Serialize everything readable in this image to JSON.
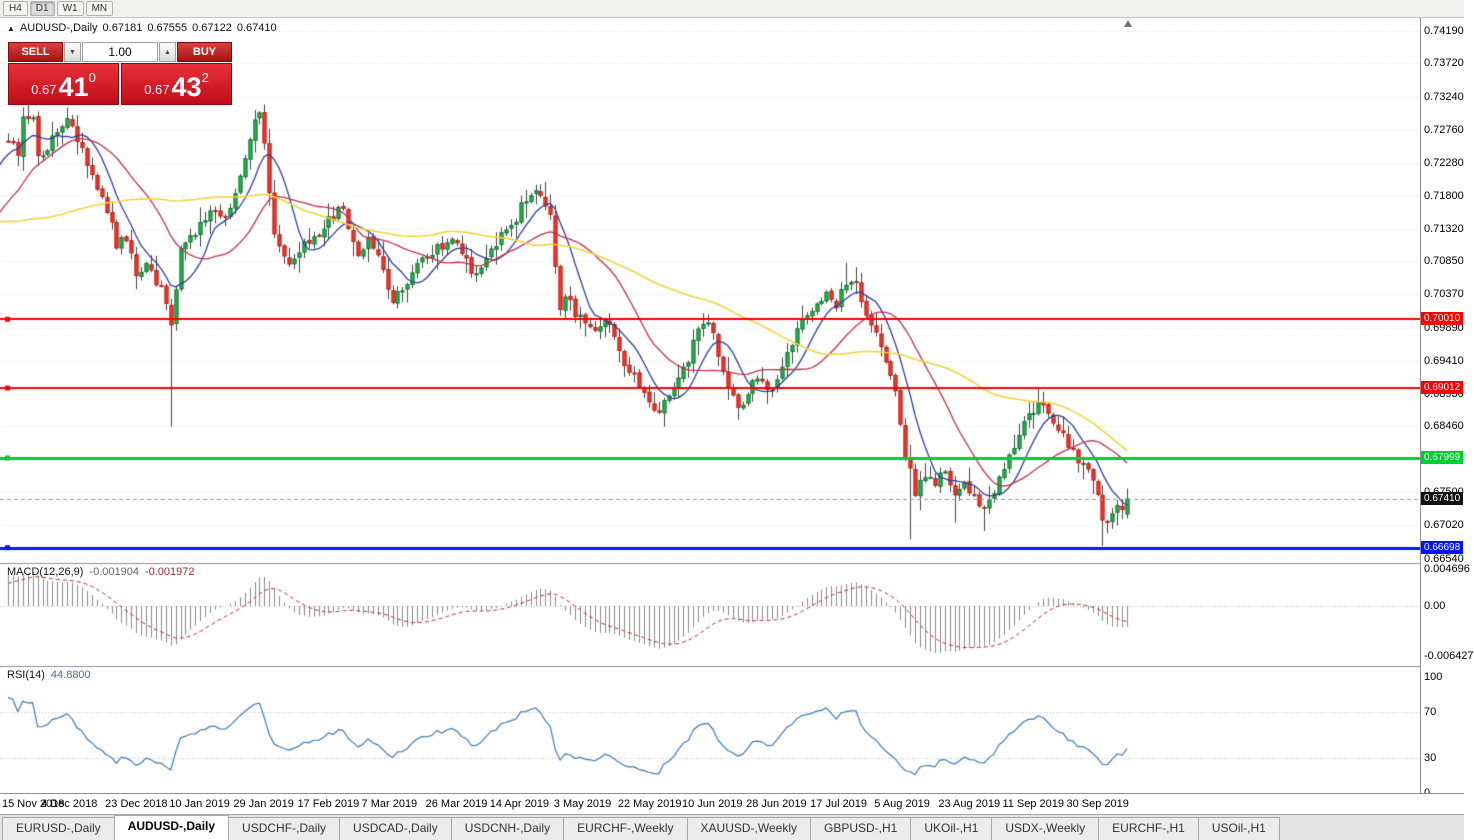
{
  "toolbar": {
    "timeframes": [
      "H4",
      "D1",
      "W1",
      "MN"
    ],
    "active": "D1"
  },
  "info_line": {
    "marker": "▲",
    "symbol": "AUDUSD-,Daily",
    "open": "0.67181",
    "high": "0.67555",
    "low": "0.67122",
    "close": "0.67410"
  },
  "trade_panel": {
    "sell_label": "SELL",
    "buy_label": "BUY",
    "volume": "1.00",
    "decrease_icon": "▼",
    "increase_icon": "▲",
    "sell_price": {
      "prefix": "0.67",
      "big": "41",
      "sup": "0"
    },
    "buy_price": {
      "prefix": "0.67",
      "big": "43",
      "sup": "2"
    },
    "panel_red": "#cf1118"
  },
  "chart_data": {
    "type": "candlestick",
    "symbol": "AUDUSD-",
    "period": "Daily",
    "candles_visible": 228,
    "preroll": 60,
    "price_anchors": [
      [
        -60,
        0.7285
      ],
      [
        -45,
        0.7185
      ],
      [
        -30,
        0.7045
      ],
      [
        -15,
        0.7095
      ],
      [
        -5,
        0.7232
      ],
      [
        0,
        0.7262
      ],
      [
        2,
        0.7242
      ],
      [
        3,
        0.7288
      ],
      [
        5,
        0.7296
      ],
      [
        6,
        0.7232
      ],
      [
        8,
        0.7252
      ],
      [
        9,
        0.7268
      ],
      [
        11,
        0.7288
      ],
      [
        12,
        0.73
      ],
      [
        14,
        0.7262
      ],
      [
        15,
        0.7242
      ],
      [
        17,
        0.7205
      ],
      [
        18,
        0.7185
      ],
      [
        20,
        0.7162
      ],
      [
        22,
        0.7105
      ],
      [
        24,
        0.7122
      ],
      [
        26,
        0.7062
      ],
      [
        28,
        0.7078
      ],
      [
        31,
        0.7042
      ],
      [
        33,
        0.6992
      ],
      [
        35,
        0.7105
      ],
      [
        37,
        0.7125
      ],
      [
        39,
        0.7135
      ],
      [
        42,
        0.7162
      ],
      [
        44,
        0.7148
      ],
      [
        46,
        0.7185
      ],
      [
        48,
        0.7238
      ],
      [
        50,
        0.7288
      ],
      [
        51,
        0.7294
      ],
      [
        52,
        0.725
      ],
      [
        54,
        0.7122
      ],
      [
        56,
        0.7092
      ],
      [
        58,
        0.7085
      ],
      [
        60,
        0.7108
      ],
      [
        63,
        0.7128
      ],
      [
        65,
        0.7145
      ],
      [
        68,
        0.7162
      ],
      [
        69,
        0.7138
      ],
      [
        71,
        0.7098
      ],
      [
        73,
        0.7115
      ],
      [
        75,
        0.7092
      ],
      [
        78,
        0.7032
      ],
      [
        81,
        0.7058
      ],
      [
        83,
        0.7082
      ],
      [
        85,
        0.7098
      ],
      [
        88,
        0.7108
      ],
      [
        91,
        0.7118
      ],
      [
        93,
        0.7085
      ],
      [
        94,
        0.7068
      ],
      [
        96,
        0.7082
      ],
      [
        98,
        0.7102
      ],
      [
        101,
        0.7128
      ],
      [
        103,
        0.7148
      ],
      [
        104,
        0.7168
      ],
      [
        106,
        0.7182
      ],
      [
        107,
        0.7188
      ],
      [
        109,
        0.7165
      ],
      [
        110,
        0.7148
      ],
      [
        112,
        0.7022
      ],
      [
        114,
        0.703
      ],
      [
        115,
        0.7008
      ],
      [
        117,
        0.7002
      ],
      [
        119,
        0.6992
      ],
      [
        120,
        0.6988
      ],
      [
        122,
        0.6998
      ],
      [
        124,
        0.6952
      ],
      [
        126,
        0.693
      ],
      [
        127,
        0.6918
      ],
      [
        129,
        0.6895
      ],
      [
        130,
        0.6882
      ],
      [
        132,
        0.6865
      ],
      [
        135,
        0.6902
      ],
      [
        138,
        0.6945
      ],
      [
        140,
        0.6985
      ],
      [
        142,
        0.7
      ],
      [
        144,
        0.6952
      ],
      [
        146,
        0.6905
      ],
      [
        148,
        0.6872
      ],
      [
        150,
        0.6892
      ],
      [
        152,
        0.6922
      ],
      [
        154,
        0.6892
      ],
      [
        156,
        0.6912
      ],
      [
        158,
        0.6952
      ],
      [
        161,
        0.6995
      ],
      [
        163,
        0.701
      ],
      [
        166,
        0.7035
      ],
      [
        168,
        0.7022
      ],
      [
        170,
        0.7058
      ],
      [
        172,
        0.7048
      ],
      [
        174,
        0.7008
      ],
      [
        176,
        0.6975
      ],
      [
        178,
        0.6938
      ],
      [
        180,
        0.6895
      ],
      [
        182,
        0.6802
      ],
      [
        184,
        0.6752
      ],
      [
        186,
        0.6775
      ],
      [
        188,
        0.676
      ],
      [
        190,
        0.6785
      ],
      [
        192,
        0.675
      ],
      [
        194,
        0.6765
      ],
      [
        196,
        0.6742
      ],
      [
        198,
        0.6728
      ],
      [
        200,
        0.6752
      ],
      [
        202,
        0.6782
      ],
      [
        204,
        0.6822
      ],
      [
        206,
        0.6848
      ],
      [
        208,
        0.6868
      ],
      [
        209,
        0.6878
      ],
      [
        210,
        0.6882
      ],
      [
        211,
        0.687
      ],
      [
        212,
        0.6855
      ],
      [
        214,
        0.6832
      ],
      [
        216,
        0.6812
      ],
      [
        218,
        0.6788
      ],
      [
        220,
        0.6772
      ],
      [
        221,
        0.6752
      ],
      [
        222,
        0.6712
      ],
      [
        223,
        0.6702
      ],
      [
        224,
        0.6722
      ],
      [
        225,
        0.6732
      ],
      [
        226,
        0.6718
      ],
      [
        227,
        0.6741
      ]
    ],
    "wick_lows": [
      [
        33,
        0.6845
      ],
      [
        183,
        0.6682
      ],
      [
        192,
        0.6706
      ],
      [
        198,
        0.6694
      ],
      [
        222,
        0.6672
      ]
    ],
    "wick_highs": [
      [
        12,
        0.7308
      ],
      [
        50,
        0.7296
      ],
      [
        107,
        0.7196
      ],
      [
        170,
        0.7083
      ],
      [
        210,
        0.6896
      ]
    ],
    "last_candle": {
      "o": 0.67181,
      "h": 0.67555,
      "l": 0.67122,
      "c": 0.6741
    },
    "h_lines": [
      {
        "price": 0.7001,
        "label": "0.70010",
        "color": "#ff0000",
        "width": 2
      },
      {
        "price": 0.69012,
        "label": "0.69012",
        "color": "#ff0000",
        "width": 2
      },
      {
        "price": 0.67999,
        "label": "0.67999",
        "color": "#00cd30",
        "width": 3
      },
      {
        "price": 0.66698,
        "label": "0.66698",
        "color": "#0013ff",
        "width": 3
      }
    ],
    "current_price": {
      "value": 0.6741,
      "label": "0.67410",
      "tag_color": "#111111"
    },
    "y_ticks": [
      {
        "v": 0.7419,
        "label": "0.74190"
      },
      {
        "v": 0.7372,
        "label": "0.73720"
      },
      {
        "v": 0.7324,
        "label": "0.73240"
      },
      {
        "v": 0.7276,
        "label": "0.72760"
      },
      {
        "v": 0.7228,
        "label": "0.72280"
      },
      {
        "v": 0.718,
        "label": "0.71800"
      },
      {
        "v": 0.7132,
        "label": "0.71320"
      },
      {
        "v": 0.7085,
        "label": "0.70850"
      },
      {
        "v": 0.7037,
        "label": "0.70370"
      },
      {
        "v": 0.6989,
        "label": "0.69890"
      },
      {
        "v": 0.6941,
        "label": "0.69410"
      },
      {
        "v": 0.6893,
        "label": "0.68930"
      },
      {
        "v": 0.6846,
        "label": "0.68460"
      },
      {
        "v": 0.675,
        "label": "0.67500"
      },
      {
        "v": 0.6702,
        "label": "0.67020"
      },
      {
        "v": 0.6654,
        "label": "0.66540"
      }
    ],
    "moving_averages": [
      {
        "period": 8,
        "color": "#2f3f9f",
        "width": 1.3
      },
      {
        "period": 20,
        "color": "#c2334d",
        "width": 1.3
      },
      {
        "period": 55,
        "color": "#f3d33c",
        "width": 1.6
      }
    ],
    "candle_colors": {
      "bull_fill": "#2fae57",
      "bull_border": "#167a35",
      "bear_fill": "#ef3b30",
      "bear_border": "#b8241c",
      "wick": "#444444"
    }
  },
  "macd_panel": {
    "name": "MACD(12,26,9)",
    "main_value": "-0.001904",
    "signal_value": "-0.001972",
    "hist_color": "#8c8c8c",
    "signal_color": "#c03232",
    "axis": [
      {
        "v": 0.004696,
        "label": "0.004696"
      },
      {
        "v": 0,
        "label": "0.00"
      },
      {
        "v": -0.006427,
        "label": "-0.006427"
      }
    ]
  },
  "rsi_panel": {
    "name": "RSI(14)",
    "value": "44.8800",
    "line_color": "#3e7bb6",
    "levels": [
      70,
      30
    ],
    "axis": [
      {
        "v": 100,
        "label": "100"
      },
      {
        "v": 70,
        "label": "70"
      },
      {
        "v": 30,
        "label": "30"
      },
      {
        "v": 0,
        "label": "0"
      }
    ]
  },
  "date_axis": {
    "ticks": [
      {
        "label": "15 Nov 2018",
        "i": 0
      },
      {
        "label": "4 Dec 2018",
        "i": 13
      },
      {
        "label": "23 Dec 2018",
        "i": 26
      },
      {
        "label": "10 Jan 2019",
        "i": 39
      },
      {
        "label": "29 Jan 2019",
        "i": 52
      },
      {
        "label": "17 Feb 2019",
        "i": 65
      },
      {
        "label": "7 Mar 2019",
        "i": 78
      },
      {
        "label": "26 Mar 2019",
        "i": 91
      },
      {
        "label": "14 Apr 2019",
        "i": 104
      },
      {
        "label": "3 May 2019",
        "i": 117
      },
      {
        "label": "22 May 2019",
        "i": 130
      },
      {
        "label": "10 Jun 2019",
        "i": 143
      },
      {
        "label": "28 Jun 2019",
        "i": 156
      },
      {
        "label": "17 Jul 2019",
        "i": 169
      },
      {
        "label": "5 Aug 2019",
        "i": 182
      },
      {
        "label": "23 Aug 2019",
        "i": 195
      },
      {
        "label": "11 Sep 2019",
        "i": 208
      },
      {
        "label": "30 Sep 2019",
        "i": 221
      }
    ]
  },
  "tabs": {
    "items": [
      "EURUSD-,Daily",
      "AUDUSD-,Daily",
      "USDCHF-,Daily",
      "USDCAD-,Daily",
      "USDCNH-,Daily",
      "EURCHF-,Weekly",
      "XAUUSD-,Weekly",
      "GBPUSD-,H1",
      "UKOil-,H1",
      "USDX-,Weekly",
      "EURCHF-,H1",
      "USOil-,H1"
    ],
    "active_index": 1
  }
}
